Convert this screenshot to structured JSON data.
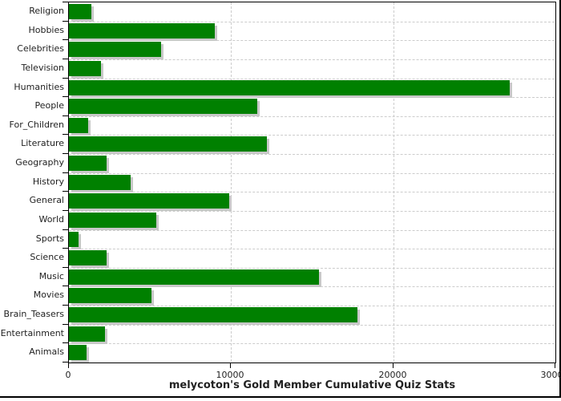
{
  "chart_data": {
    "type": "bar",
    "orientation": "horizontal",
    "title": "melycoton's Gold Member Cumulative Quiz Stats",
    "categories": [
      "Religion",
      "Hobbies",
      "Celebrities",
      "Television",
      "Humanities",
      "People",
      "For_Children",
      "Literature",
      "Geography",
      "History",
      "General",
      "World",
      "Sports",
      "Science",
      "Music",
      "Movies",
      "Brain_Teasers",
      "Entertainment",
      "Animals"
    ],
    "values": [
      1400,
      9000,
      5700,
      2000,
      27200,
      11600,
      1200,
      12200,
      2300,
      3800,
      9900,
      5400,
      600,
      2300,
      15400,
      5100,
      17800,
      2200,
      1100
    ],
    "xlim": [
      0,
      30000
    ],
    "x_ticks": [
      0,
      10000,
      20000,
      30000
    ],
    "x_tick_labels": [
      "0",
      "10000",
      "20000",
      "30000"
    ],
    "grid": "dashed, horizontal row separators and vertical lines at 10000 and 20000",
    "legend": "none",
    "colors": {
      "bar": "#008000",
      "bar_shadow": "#c8c8c8",
      "grid": "#cccccc",
      "axis": "#000000",
      "text": "#222222"
    }
  }
}
